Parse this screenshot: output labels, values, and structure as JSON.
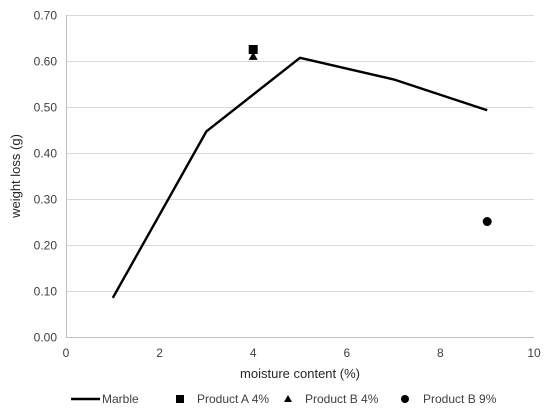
{
  "chart_data": {
    "type": "scatter",
    "title": "",
    "xlabel": "moisture content (%)",
    "ylabel": "weight loss (g)",
    "xlim": [
      0,
      10
    ],
    "ylim": [
      0,
      0.7
    ],
    "x_ticks": [
      0,
      2,
      4,
      6,
      8,
      10
    ],
    "y_ticks": [
      0,
      0.1,
      0.2,
      0.3,
      0.4,
      0.5,
      0.6,
      0.7
    ],
    "x_tick_labels": [
      "0",
      "2",
      "4",
      "6",
      "8",
      "10"
    ],
    "y_tick_labels": [
      "0.00",
      "0.10",
      "0.20",
      "0.30",
      "0.40",
      "0.50",
      "0.60",
      "0.70"
    ],
    "grid": "horizontal",
    "legend_position": "bottom",
    "series": [
      {
        "name": "Marble",
        "marker": "line",
        "color": "#000000",
        "x": [
          1,
          3,
          5,
          7,
          9
        ],
        "y": [
          0.085,
          0.447,
          0.607,
          0.56,
          0.493
        ]
      },
      {
        "name": "Product A 4%",
        "marker": "square",
        "color": "#000000",
        "x": [
          4
        ],
        "y": [
          0.625
        ]
      },
      {
        "name": "Product B 4%",
        "marker": "triangle",
        "color": "#000000",
        "x": [
          4
        ],
        "y": [
          0.61
        ]
      },
      {
        "name": "Product B 9%",
        "marker": "circle",
        "color": "#000000",
        "x": [
          9
        ],
        "y": [
          0.251
        ]
      }
    ]
  }
}
